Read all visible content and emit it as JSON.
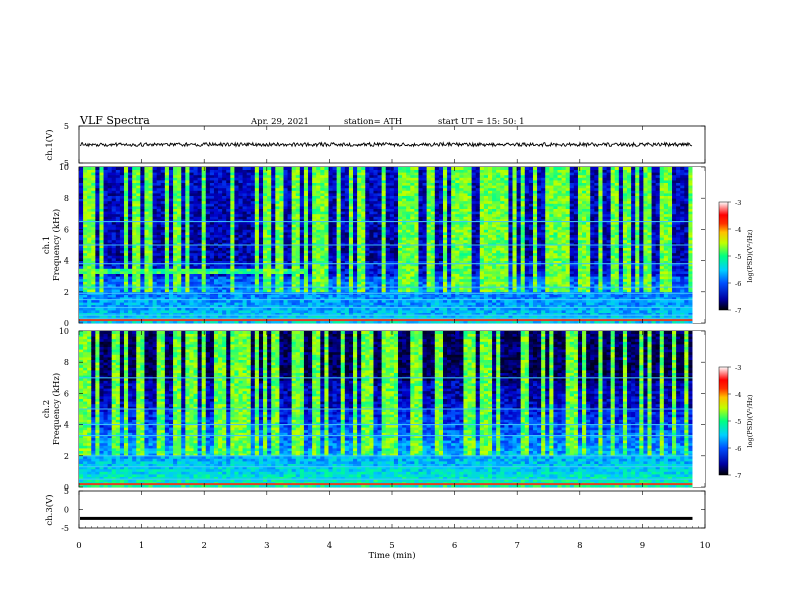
{
  "header": {
    "title": "VLF  Spectra",
    "date": "Apr. 29, 2021",
    "station": "station= ATH",
    "start": "start  UT  =    15: 50: 1"
  },
  "chart_data": [
    {
      "type": "line",
      "panel": "ch.1 waveform",
      "ylabel": "ch.1(V)",
      "ylim": [
        -5,
        5
      ],
      "y_ticks": [
        "5",
        "-5"
      ],
      "xlim": [
        0,
        10
      ],
      "series": [
        {
          "baseline": 0,
          "approx_amplitude": 0.5,
          "x_end": 9.8
        }
      ]
    },
    {
      "type": "heatmap",
      "panel": "ch.1 spectrogram",
      "ylabel": "ch.1\nFrequency  (kHz)",
      "ylim": [
        0,
        10
      ],
      "y_ticks": [
        "0",
        "2",
        "4",
        "6",
        "8",
        "10"
      ],
      "xlim": [
        0,
        10
      ],
      "x_data_end": 9.8,
      "colorbar": {
        "label": "log(PSD)(V²/Hz)",
        "ticks": [
          "-3",
          "-4",
          "-5",
          "-6",
          "-7"
        ],
        "range": [
          -7,
          -3
        ]
      },
      "tonal_lines_khz": [
        6.5,
        5.0,
        3.8,
        2.3,
        1.9,
        1.5,
        1.0,
        0.5,
        0.3
      ],
      "features": "broadband noise 0-3 kHz, dispersive emissions near 3.3 kHz from 0 to 3.5 min, sferics throughout"
    },
    {
      "type": "heatmap",
      "panel": "ch.2 spectrogram",
      "ylabel": "ch.2\nFrequency  (kHz)",
      "ylim": [
        0,
        10
      ],
      "y_ticks": [
        "0",
        "2",
        "4",
        "6",
        "8",
        "10"
      ],
      "xlim": [
        0,
        10
      ],
      "x_data_end": 9.8,
      "colorbar": {
        "label": "log(PSD)(V²/Hz)",
        "ticks": [
          "-3",
          "-4",
          "-5",
          "-6",
          "-7"
        ],
        "range": [
          -7,
          -3
        ]
      },
      "tonal_lines_khz": [
        7.0,
        5.0,
        4.0,
        3.3,
        2.0,
        1.3,
        0.5
      ],
      "features": "strong broadband noise 0-5 kHz, sferics throughout"
    },
    {
      "type": "line",
      "panel": "ch.3 waveform",
      "ylabel": "ch.3(V)",
      "ylim": [
        -5,
        5
      ],
      "y_ticks": [
        "5",
        "0",
        "-5"
      ],
      "xlim": [
        0,
        10
      ],
      "series": [
        {
          "baseline": -2.2,
          "approx_amplitude": 0.1,
          "x_end": 9.8
        }
      ]
    }
  ],
  "xaxis": {
    "label": "Time  (min)",
    "ticks": [
      "0",
      "1",
      "2",
      "3",
      "4",
      "5",
      "6",
      "7",
      "8",
      "9",
      "10"
    ]
  },
  "colors": {
    "colormap": [
      "#000000",
      "#000040",
      "#0000c8",
      "#0050ff",
      "#00c8ff",
      "#00ff90",
      "#b4ff00",
      "#ffff00",
      "#ff9600",
      "#ff0000",
      "#ffffff"
    ]
  }
}
